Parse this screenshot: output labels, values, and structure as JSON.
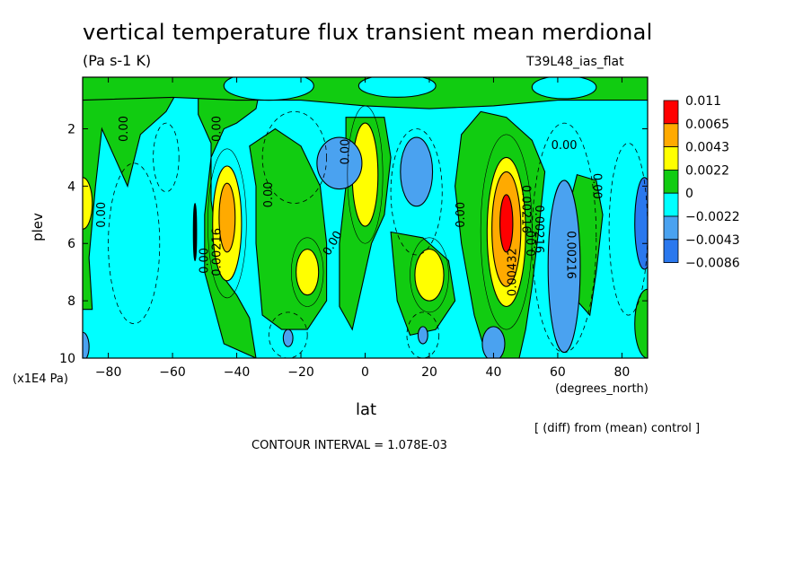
{
  "header": {
    "title": "vertical temperature flux transient mean merdional",
    "units": "(Pa s-1 K)",
    "run_name": "T39L48_ias_flat"
  },
  "footer": {
    "diff_note": "[ (diff) from (mean) control ]",
    "contour_interval": "CONTOUR INTERVAL = 1.078E-03"
  },
  "colors": {
    "c_neg3": "#2a78ee",
    "c_neg2": "#4aa2f0",
    "c_neg1": "#00ffff",
    "c_pos1": "#11cc11",
    "c_pos2": "#ffff00",
    "c_pos3": "#ffaa00",
    "c_pos4": "#ff0000"
  },
  "chart_data": {
    "type": "heatmap",
    "xlabel": "lat",
    "x_unit": "(degrees_north)",
    "ylabel": "plev",
    "y_unit": "(x1E4 Pa)",
    "xlim": [
      -88,
      88
    ],
    "ylim": [
      10,
      0.2
    ],
    "x_ticks": [
      -80,
      -60,
      -40,
      -20,
      0,
      20,
      40,
      60,
      80
    ],
    "y_ticks": [
      2,
      4,
      6,
      8,
      10
    ],
    "colorbar": {
      "levels": [
        "0.011",
        "0.0065",
        "0.0043",
        "0.0022",
        "0",
        "-0.0022",
        "-0.0043",
        "-0.0086"
      ],
      "bins": [
        {
          "color": "#ff0000"
        },
        {
          "color": "#ffaa00"
        },
        {
          "color": "#ffff00"
        },
        {
          "color": "#11cc11"
        },
        {
          "color": "#00ffff"
        },
        {
          "color": "#4aa2f0"
        },
        {
          "color": "#2a78ee"
        }
      ]
    },
    "contour_labels": [
      "0.00",
      "0.00",
      "0.00",
      "0.00",
      "0.00",
      "0.00",
      "0.00",
      "0.00",
      "0.00",
      "0.00",
      "0.00",
      "0.00216",
      "0.00216",
      "0.00216",
      "0.00432",
      "0.00216"
    ],
    "features": [
      {
        "lat": -88,
        "plev": 4.6,
        "value": 0.004
      },
      {
        "lat": -43,
        "plev": 5.0,
        "value": 0.0055
      },
      {
        "lat": -18,
        "plev": 7.0,
        "value": 0.003
      },
      {
        "lat": 0,
        "plev": 3.5,
        "value": 0.004
      },
      {
        "lat": 20,
        "plev": 7.1,
        "value": 0.0035
      },
      {
        "lat": 44,
        "plev": 5.5,
        "value": 0.011
      },
      {
        "lat": 70,
        "plev": 5.0,
        "value": 0.0015
      },
      {
        "lat": -8,
        "plev": 3.2,
        "value": -0.0035
      },
      {
        "lat": 16,
        "plev": 3.5,
        "value": -0.0035
      },
      {
        "lat": 62,
        "plev": 6.7,
        "value": -0.0045
      },
      {
        "lat": 87,
        "plev": 5.3,
        "value": -0.006
      },
      {
        "lat": 40,
        "plev": 9.6,
        "value": -0.0035
      },
      {
        "lat": -24,
        "plev": 9.3,
        "value": -0.0025
      },
      {
        "lat": 18,
        "plev": 9.2,
        "value": -0.0025
      }
    ]
  }
}
